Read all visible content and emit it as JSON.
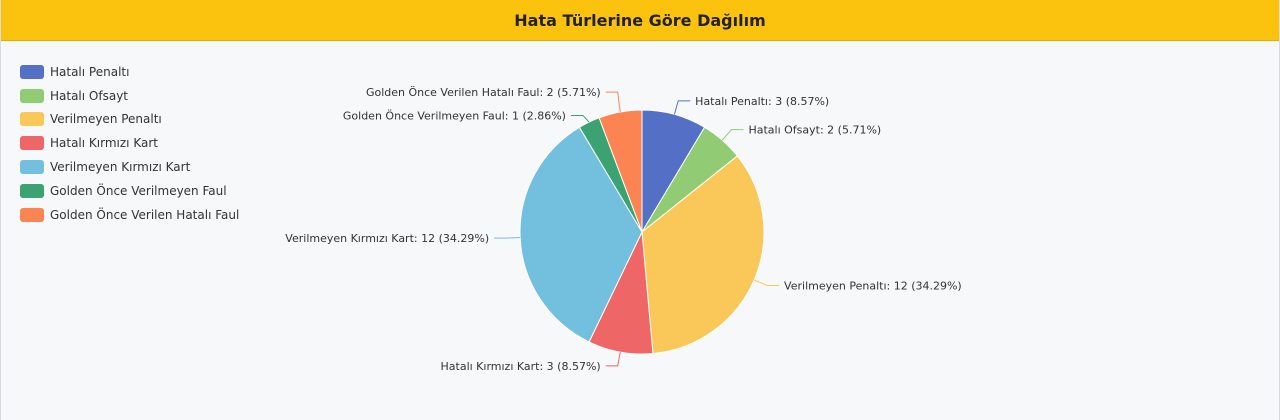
{
  "header": {
    "title": "Hata Türlerine Göre Dağılım"
  },
  "chart_data": {
    "type": "pie",
    "title": "Hata Türlerine Göre Dağılım",
    "legend_position": "top-left",
    "slices": [
      {
        "label": "Hatalı Penaltı",
        "value": 3,
        "percent": 8.57,
        "color": "#5470c6",
        "callout": "Hatalı Penaltı: 3 (8.57%)"
      },
      {
        "label": "Hatalı Ofsayt",
        "value": 2,
        "percent": 5.71,
        "color": "#91cc75",
        "callout": "Hatalı Ofsayt: 2 (5.71%)"
      },
      {
        "label": "Verilmeyen Penaltı",
        "value": 12,
        "percent": 34.29,
        "color": "#fac858",
        "callout": "Verilmeyen Penaltı: 12 (34.29%)"
      },
      {
        "label": "Hatalı Kırmızı Kart",
        "value": 3,
        "percent": 8.57,
        "color": "#ee6666",
        "callout": "Hatalı Kırmızı Kart: 3 (8.57%)"
      },
      {
        "label": "Verilmeyen Kırmızı Kart",
        "value": 12,
        "percent": 34.29,
        "color": "#73c0de",
        "callout": "Verilmeyen Kırmızı Kart: 12 (34.29%)"
      },
      {
        "label": "Golden Önce Verilmeyen Faul",
        "value": 1,
        "percent": 2.86,
        "color": "#3ba272",
        "callout": "Golden Önce Verilmeyen Faul: 1 (2.86%)"
      },
      {
        "label": "Golden Önce Verilen Hatalı Faul",
        "value": 2,
        "percent": 5.71,
        "color": "#fc8452",
        "callout": "Golden Önce Verilen Hatalı Faul: 2 (5.71%)"
      }
    ]
  }
}
